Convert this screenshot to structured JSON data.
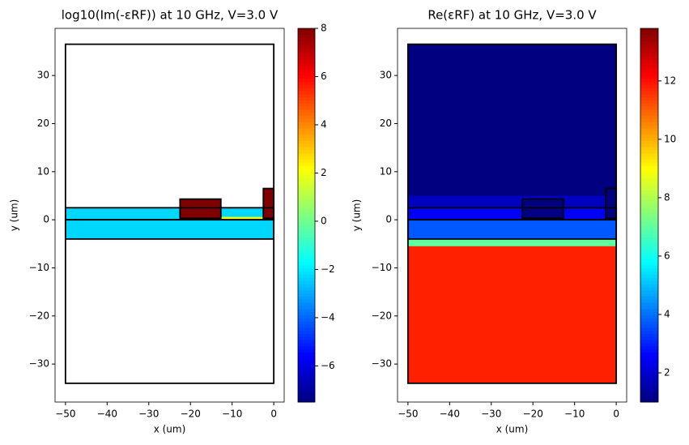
{
  "chart_data": [
    {
      "type": "heatmap",
      "title": "log10(Im(-εRF)) at 10 GHz, V=3.0 V",
      "xlabel": "x (um)",
      "ylabel": "y (um)",
      "colormap": "jet",
      "xlim": [
        -52.5,
        2.5
      ],
      "ylim": [
        -37.9,
        39.8
      ],
      "xticks": [
        {
          "value": -50,
          "label": "−50"
        },
        {
          "value": -40,
          "label": "−40"
        },
        {
          "value": -30,
          "label": "−30"
        },
        {
          "value": -20,
          "label": "−20"
        },
        {
          "value": -10,
          "label": "−10"
        },
        0
      ],
      "yticks": [
        {
          "value": -30,
          "label": "−30"
        },
        {
          "value": -20,
          "label": "−20"
        },
        {
          "value": -10,
          "label": "−10"
        },
        0,
        10,
        20,
        30
      ],
      "clim": [
        -7.5,
        8
      ],
      "cticks": [
        {
          "value": -6,
          "label": "−6"
        },
        {
          "value": -4,
          "label": "−4"
        },
        {
          "value": -2,
          "label": "−2"
        },
        0,
        2,
        4,
        6,
        8
      ],
      "regions": [
        {
          "x": [
            -50,
            0
          ],
          "y": [
            -4,
            2.5
          ],
          "value": -2.3
        },
        {
          "x": [
            -12.7,
            -2.5
          ],
          "y": [
            0,
            0.6
          ],
          "value": 2
        },
        {
          "x": [
            -22.5,
            -12.7
          ],
          "y": [
            0.3,
            4.3
          ],
          "value": 8
        },
        {
          "x": [
            -2.5,
            0
          ],
          "y": [
            0.3,
            6.5
          ],
          "value": 8
        }
      ],
      "outlines": [
        {
          "x": [
            -50,
            0
          ],
          "y": [
            -34,
            36.5
          ]
        },
        {
          "x": [
            -50,
            0
          ],
          "y": [
            -4,
            0
          ]
        },
        {
          "x": [
            -50,
            0
          ],
          "y": [
            0,
            2.5
          ]
        },
        {
          "x": [
            -22.5,
            -12.7
          ],
          "y": [
            0.3,
            4.3
          ]
        },
        {
          "x": [
            -2.5,
            0
          ],
          "y": [
            0.3,
            6.5
          ]
        }
      ]
    },
    {
      "type": "heatmap",
      "title": "Re(εRF) at 10 GHz, V=3.0 V",
      "xlabel": "x (um)",
      "ylabel": "y (um)",
      "colormap": "jet",
      "xlim": [
        -52.5,
        2.5
      ],
      "ylim": [
        -37.9,
        39.8
      ],
      "xticks": [
        {
          "value": -50,
          "label": "−50"
        },
        {
          "value": -40,
          "label": "−40"
        },
        {
          "value": -30,
          "label": "−30"
        },
        {
          "value": -20,
          "label": "−20"
        },
        {
          "value": -10,
          "label": "−10"
        },
        0
      ],
      "yticks": [
        {
          "value": -30,
          "label": "−30"
        },
        {
          "value": -20,
          "label": "−20"
        },
        {
          "value": -10,
          "label": "−10"
        },
        0,
        10,
        20,
        30
      ],
      "clim": [
        1,
        13.8
      ],
      "cticks": [
        2,
        4,
        6,
        8,
        10,
        12
      ],
      "regions": [
        {
          "x": [
            -50,
            0
          ],
          "y": [
            -34,
            36.5
          ],
          "value": 1
        },
        {
          "x": [
            -50,
            0
          ],
          "y": [
            2.5,
            5
          ],
          "value": 1.8
        },
        {
          "x": [
            -50,
            0
          ],
          "y": [
            0,
            2.5
          ],
          "value": 2.5
        },
        {
          "x": [
            -50,
            0
          ],
          "y": [
            -4,
            0
          ],
          "value": 3.7
        },
        {
          "x": [
            -50,
            0
          ],
          "y": [
            -7,
            -4
          ],
          "value": 7
        },
        {
          "x": [
            -50,
            0
          ],
          "y": [
            -34,
            -5.5
          ],
          "value": 11.8
        },
        {
          "x": [
            -22.5,
            -12.7
          ],
          "y": [
            0.3,
            4.3
          ],
          "value": 1
        },
        {
          "x": [
            -2.5,
            0
          ],
          "y": [
            0.3,
            6.5
          ],
          "value": 1
        }
      ],
      "outlines": [
        {
          "x": [
            -50,
            0
          ],
          "y": [
            -34,
            36.5
          ]
        },
        {
          "x": [
            -50,
            0
          ],
          "y": [
            -4,
            0
          ]
        },
        {
          "x": [
            -50,
            0
          ],
          "y": [
            0,
            2.5
          ]
        },
        {
          "x": [
            -22.5,
            -12.7
          ],
          "y": [
            0.3,
            4.3
          ]
        },
        {
          "x": [
            -2.5,
            0
          ],
          "y": [
            0.3,
            6.5
          ]
        }
      ]
    }
  ]
}
